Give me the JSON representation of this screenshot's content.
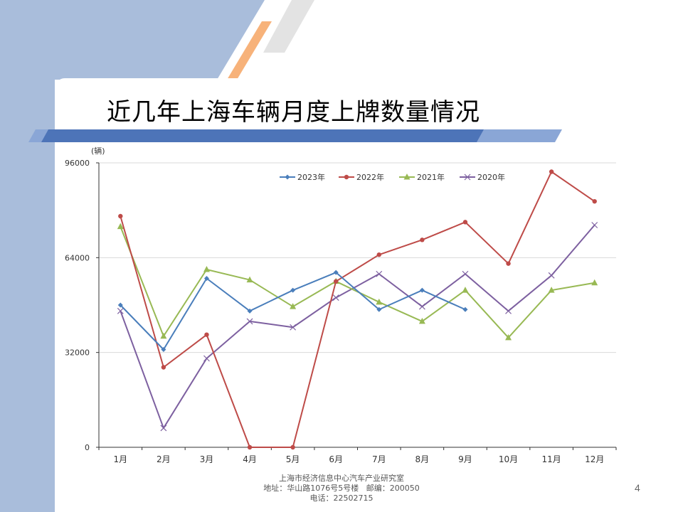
{
  "slide": {
    "title": "近几年上海车辆月度上牌数量情况",
    "page_number": "4",
    "footer": {
      "line1": "上海市经济信息中心汽车产业研究室",
      "line2": "地址：华山路1076号5号楼   邮编：200050",
      "line3": "电话：22502715"
    },
    "colors": {
      "side_band": "#a9bddb",
      "accent_orange": "#f7b27a",
      "stripe_gray": "#e3e3e3",
      "title_bar": "#4d74b8"
    }
  },
  "chart_data": {
    "type": "line",
    "unit_label": "(辆)",
    "categories": [
      "1月",
      "2月",
      "3月",
      "4月",
      "5月",
      "6月",
      "7月",
      "8月",
      "9月",
      "10月",
      "11月",
      "12月"
    ],
    "ylim": [
      0,
      96000
    ],
    "yticks": [
      0,
      32000,
      64000,
      96000
    ],
    "ytick_labels": [
      "0",
      "32000",
      "64000",
      "96000"
    ],
    "grid": true,
    "legend_position": "top",
    "series": [
      {
        "name": "2023年",
        "color": "#4a7ebb",
        "marker": "diamond",
        "values": [
          48000,
          33000,
          57000,
          46000,
          53000,
          59000,
          46500,
          53000,
          46500,
          null,
          null,
          null
        ]
      },
      {
        "name": "2022年",
        "color": "#be4b48",
        "marker": "circle",
        "values": [
          78000,
          27000,
          38000,
          0,
          0,
          56000,
          65000,
          70000,
          76000,
          62000,
          93000,
          83000
        ]
      },
      {
        "name": "2021年",
        "color": "#98b954",
        "marker": "triangle",
        "values": [
          74500,
          37500,
          60000,
          56500,
          47500,
          56000,
          49000,
          42500,
          53000,
          37000,
          53000,
          55500
        ]
      },
      {
        "name": "2020年",
        "color": "#7d60a0",
        "marker": "x",
        "values": [
          46000,
          6500,
          30000,
          42500,
          40500,
          50500,
          58500,
          47500,
          58500,
          46000,
          58000,
          75000
        ]
      }
    ]
  }
}
